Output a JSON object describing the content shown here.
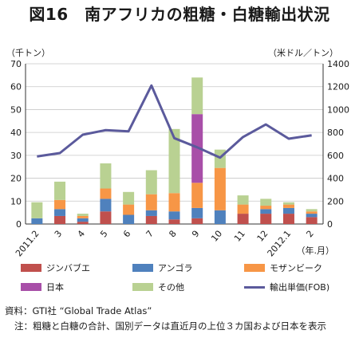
{
  "title": "図16　南アフリカの粗糖・白糖輸出状況",
  "chart_data": {
    "type": "bar+line",
    "left_unit": "（千トン）",
    "right_unit": "（米ドル／トン）",
    "x_unit": "（年.月）",
    "categories": [
      "2011.2",
      "3",
      "4",
      "5",
      "6",
      "7",
      "8",
      "9",
      "10",
      "11",
      "12",
      "2012.1",
      "2"
    ],
    "y_left": {
      "min": 0,
      "max": 70,
      "ticks": [
        0,
        10,
        20,
        30,
        40,
        50,
        60,
        70
      ]
    },
    "y_right": {
      "min": 0,
      "max": 1400,
      "ticks": [
        0,
        200,
        400,
        600,
        800,
        1000,
        1200,
        1400
      ]
    },
    "stacked_series": [
      {
        "name": "ジンバブエ",
        "color": "#c0504d",
        "values": [
          0,
          3.5,
          1,
          5.5,
          0,
          3.5,
          2,
          2.5,
          0,
          4.5,
          4.5,
          4.5,
          3
        ]
      },
      {
        "name": "アンゴラ",
        "color": "#4f81bd",
        "values": [
          2.5,
          3,
          1.5,
          5.5,
          4,
          2.5,
          3.5,
          4.5,
          6,
          0,
          2,
          2.5,
          1.5
        ]
      },
      {
        "name": "モザンビーク",
        "color": "#f79646",
        "values": [
          0,
          4,
          1,
          4.5,
          4.5,
          7,
          8,
          11,
          18.5,
          4,
          1.5,
          1.5,
          1
        ]
      },
      {
        "name": "日本",
        "color": "#a84fa8",
        "values": [
          0,
          0,
          0,
          0,
          0,
          0,
          0,
          30,
          0,
          0,
          0,
          0,
          0
        ]
      },
      {
        "name": "その他",
        "color": "#b9d192",
        "values": [
          7,
          8,
          1,
          11,
          5.5,
          10.5,
          28,
          16,
          8,
          4,
          3,
          1,
          1
        ]
      }
    ],
    "line_series": {
      "name": "輸出単価(FOB)",
      "color": "#5b5a9c",
      "axis": "right",
      "values": [
        590,
        620,
        780,
        820,
        810,
        1210,
        750,
        670,
        580,
        760,
        870,
        745,
        775
      ]
    }
  },
  "source": "資料：GTI社 “Global Trade Atlas”",
  "note": "注：粗糖と白糖の合計、国別データは直近月の上位３カ国および日本を表示"
}
